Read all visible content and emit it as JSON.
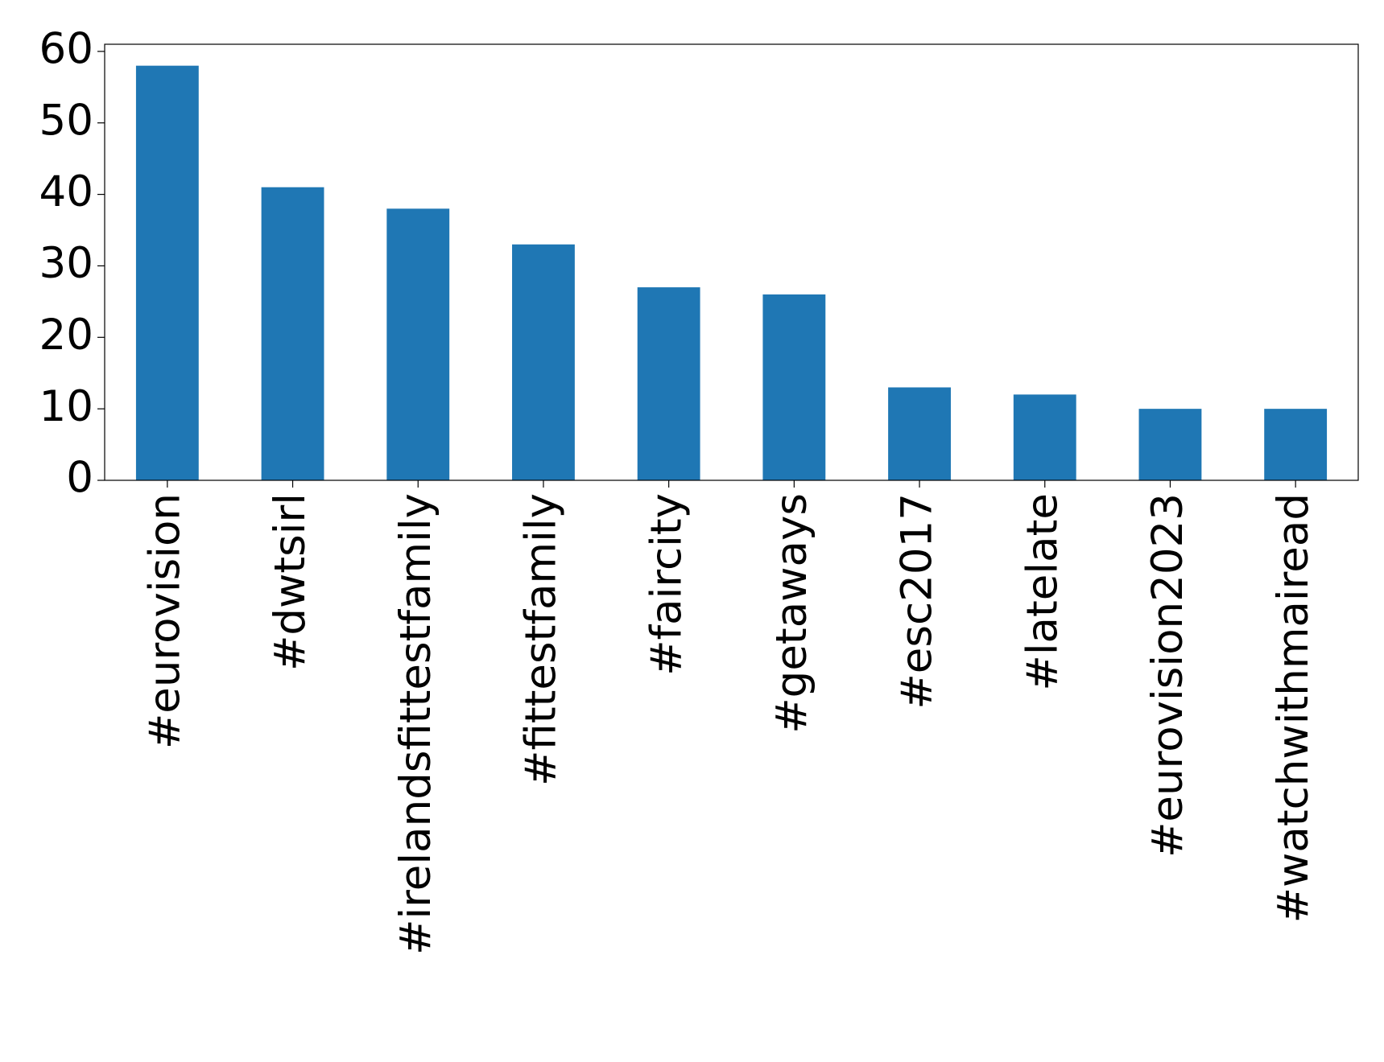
{
  "chart_data": {
    "type": "bar",
    "categories": [
      "#eurovision",
      "#dwtsirl",
      "#irelandsfittestfamily",
      "#fittestfamily",
      "#faircity",
      "#getaways",
      "#esc2017",
      "#latelate",
      "#eurovision2023",
      "#watchwithmairead"
    ],
    "values": [
      58,
      41,
      38,
      33,
      27,
      26,
      13,
      12,
      10,
      10
    ],
    "color": "#1f77b4",
    "ylim": [
      0,
      61
    ],
    "yticks": [
      0,
      10,
      20,
      30,
      40,
      50,
      60
    ],
    "grid": false
  }
}
